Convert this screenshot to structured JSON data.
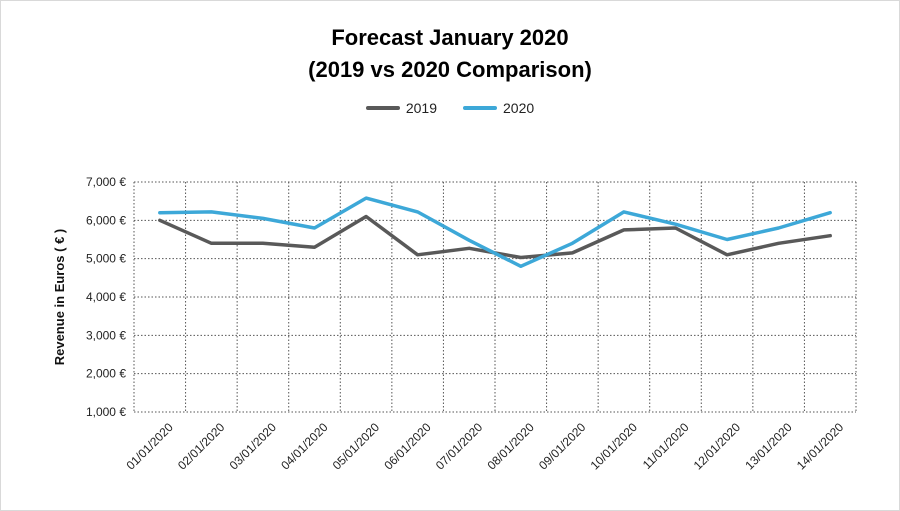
{
  "chart_data": {
    "type": "line",
    "title": "Forecast January 2020",
    "subtitle": "(2019 vs 2020 Comparison)",
    "xlabel": "",
    "ylabel": "Revenue in Euros ( € )",
    "categories": [
      "01/01/2020",
      "02/01/2020",
      "03/01/2020",
      "04/01/2020",
      "05/01/2020",
      "06/01/2020",
      "07/01/2020",
      "08/01/2020",
      "09/01/2020",
      "10/01/2020",
      "11/01/2020",
      "12/01/2020",
      "13/01/2020",
      "14/01/2020"
    ],
    "yticks": [
      "1,000 €",
      "2,000 €",
      "3,000 €",
      "4,000 €",
      "5,000 €",
      "6,000 €",
      "7,000 €"
    ],
    "ylim": [
      1000,
      7000
    ],
    "grid": true,
    "legend_position": "top-center",
    "series": [
      {
        "name": "2019",
        "color": "#595959",
        "values": [
          6000,
          5400,
          5400,
          5300,
          6100,
          5100,
          5270,
          5030,
          5150,
          5750,
          5800,
          5100,
          5400,
          5600
        ]
      },
      {
        "name": "2020",
        "color": "#3da8d8",
        "values": [
          6200,
          6220,
          6050,
          5800,
          6580,
          6220,
          5480,
          4800,
          5400,
          6220,
          5900,
          5500,
          5800,
          6200
        ]
      }
    ]
  }
}
